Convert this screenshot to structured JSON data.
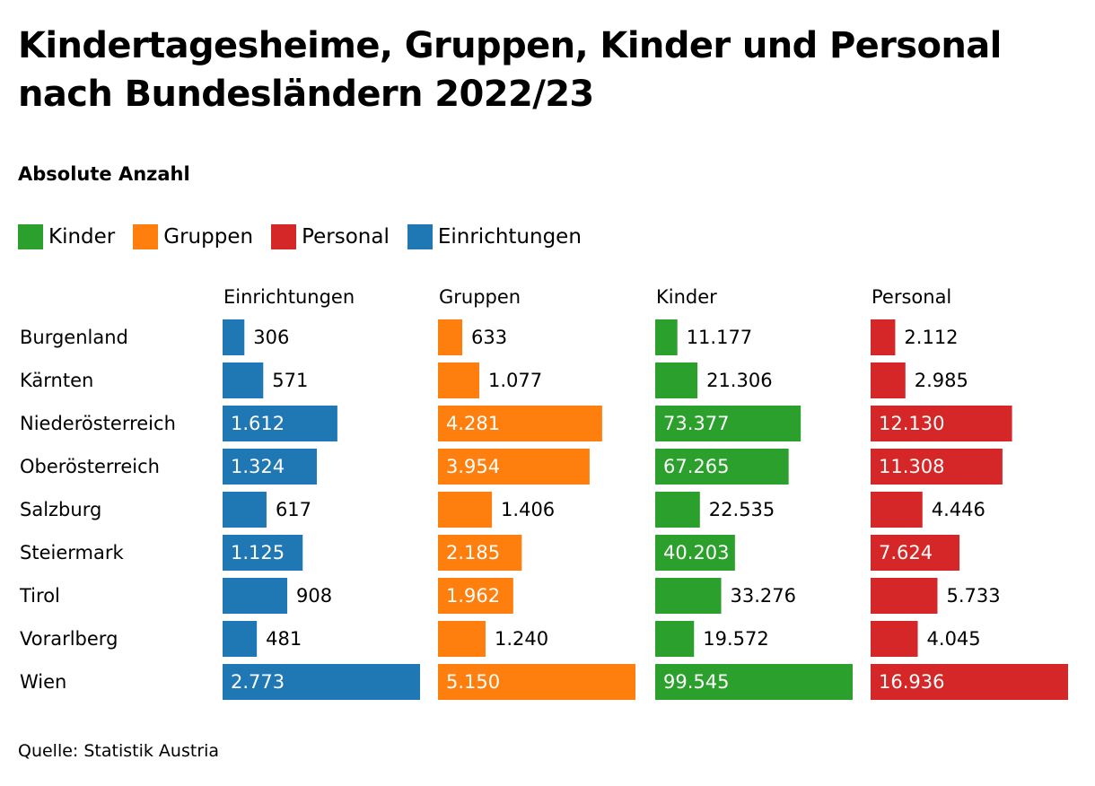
{
  "title": "Kindertagesheime, Gruppen, Kinder und Personal nach Bundesländern 2022/23",
  "subtitle": "Absolute Anzahl",
  "source": "Quelle: Statistik Austria",
  "colors": {
    "Einrichtungen": "#1f77b4",
    "Gruppen": "#ff7f0e",
    "Kinder": "#2ca02c",
    "Personal": "#d62728"
  },
  "legend": [
    {
      "label": "Kinder",
      "color": "#2ca02c"
    },
    {
      "label": "Gruppen",
      "color": "#ff7f0e"
    },
    {
      "label": "Personal",
      "color": "#d62728"
    },
    {
      "label": "Einrichtungen",
      "color": "#1f77b4"
    }
  ],
  "chart_data": {
    "type": "bar",
    "title": "Kindertagesheime, Gruppen, Kinder und Personal nach Bundesländern 2022/23",
    "subtitle": "Absolute Anzahl",
    "orientation": "horizontal",
    "layout": "small-multiples",
    "categories": [
      "Burgenland",
      "Kärnten",
      "Niederösterreich",
      "Oberösterreich",
      "Salzburg",
      "Steiermark",
      "Tirol",
      "Vorarlberg",
      "Wien"
    ],
    "series": [
      {
        "name": "Einrichtungen",
        "values": [
          306,
          571,
          1612,
          1324,
          617,
          1125,
          908,
          481,
          2773
        ],
        "labels": [
          "306",
          "571",
          "1.612",
          "1.324",
          "617",
          "1.125",
          "908",
          "481",
          "2.773"
        ]
      },
      {
        "name": "Gruppen",
        "values": [
          633,
          1077,
          4281,
          3954,
          1406,
          2185,
          1962,
          1240,
          5150
        ],
        "labels": [
          "633",
          "1.077",
          "4.281",
          "3.954",
          "1.406",
          "2.185",
          "1.962",
          "1.240",
          "5.150"
        ]
      },
      {
        "name": "Kinder",
        "values": [
          11177,
          21306,
          73377,
          67265,
          22535,
          40203,
          33276,
          19572,
          99545
        ],
        "labels": [
          "11.177",
          "21.306",
          "73.377",
          "67.265",
          "22.535",
          "40.203",
          "33.276",
          "19.572",
          "99.545"
        ]
      },
      {
        "name": "Personal",
        "values": [
          2112,
          2985,
          12130,
          11308,
          4446,
          7624,
          5733,
          4045,
          16936
        ],
        "labels": [
          "2.112",
          "2.985",
          "12.130",
          "11.308",
          "4.446",
          "7.624",
          "5.733",
          "4.045",
          "16.936"
        ]
      }
    ],
    "grid": false
  }
}
